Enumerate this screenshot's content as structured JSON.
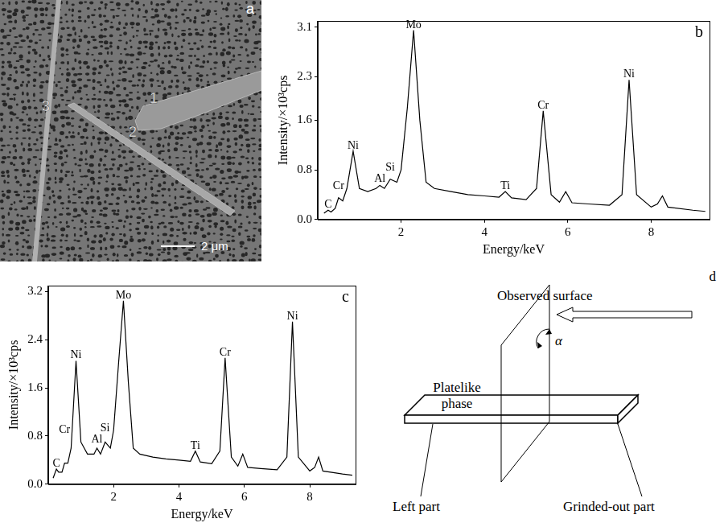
{
  "micrograph": {
    "panel_label": "a",
    "labels": [
      "1",
      "2",
      "3"
    ],
    "scale_bar": "2 μm"
  },
  "schematic": {
    "panel_label": "d",
    "observed_surface": "Observed surface",
    "angle": "α",
    "plate": "Platelike phase",
    "left": "Left part",
    "right": "Grinded-out part"
  },
  "chart_data": [
    {
      "type": "line",
      "panel_label": "b",
      "x_label": "Energy/keV",
      "y_label": "Intensity/×10³cps",
      "color": "#000000",
      "grid": false,
      "x": [
        0.15,
        0.25,
        0.32,
        0.42,
        0.5,
        0.6,
        0.7,
        0.85,
        1.0,
        1.2,
        1.4,
        1.49,
        1.6,
        1.74,
        1.9,
        2.0,
        2.15,
        2.3,
        2.45,
        2.6,
        2.8,
        3.2,
        3.6,
        4.0,
        4.35,
        4.5,
        4.65,
        5.0,
        5.25,
        5.41,
        5.6,
        5.8,
        5.95,
        6.1,
        6.5,
        7.0,
        7.3,
        7.47,
        7.65,
        8.0,
        8.15,
        8.27,
        8.4,
        9.0,
        9.3
      ],
      "values": [
        0.1,
        0.15,
        0.12,
        0.18,
        0.35,
        0.3,
        0.5,
        1.1,
        0.5,
        0.45,
        0.5,
        0.55,
        0.5,
        0.65,
        0.6,
        0.8,
        1.8,
        3.05,
        1.6,
        0.6,
        0.5,
        0.45,
        0.4,
        0.38,
        0.36,
        0.45,
        0.35,
        0.32,
        0.5,
        1.75,
        0.4,
        0.28,
        0.45,
        0.27,
        0.25,
        0.23,
        0.4,
        2.25,
        0.4,
        0.2,
        0.25,
        0.38,
        0.2,
        0.15,
        0.13
      ],
      "xlim": [
        0,
        9.4
      ],
      "xticks": [
        2,
        4,
        6,
        8
      ],
      "ylim": [
        0,
        3.2
      ],
      "yticks": [
        {
          "value": 0,
          "label": "0.0"
        },
        0.8,
        1.6,
        2.3,
        3.1
      ],
      "annotations": [
        {
          "text": "C",
          "x": 0.25,
          "y": 0.15
        },
        {
          "text": "Cr",
          "x": 0.5,
          "y": 0.35
        },
        {
          "text": "Ni",
          "x": 0.85,
          "y": 1.1
        },
        {
          "text": "Al",
          "x": 1.49,
          "y": 0.55
        },
        {
          "text": "Si",
          "x": 1.74,
          "y": 0.65
        },
        {
          "text": "Mo",
          "x": 2.3,
          "y": 3.05
        },
        {
          "text": "Ti",
          "x": 4.5,
          "y": 0.45
        },
        {
          "text": "Cr",
          "x": 5.41,
          "y": 1.75
        },
        {
          "text": "Ni",
          "x": 7.47,
          "y": 2.25
        }
      ]
    },
    {
      "type": "line",
      "panel_label": "c",
      "x_label": "Energy/keV",
      "y_label": "Intensity/×10³cps",
      "color": "#000000",
      "grid": false,
      "x": [
        0.15,
        0.25,
        0.32,
        0.42,
        0.5,
        0.6,
        0.7,
        0.85,
        1.0,
        1.2,
        1.4,
        1.49,
        1.6,
        1.74,
        1.9,
        2.0,
        2.15,
        2.3,
        2.45,
        2.6,
        2.8,
        3.2,
        3.6,
        4.0,
        4.35,
        4.5,
        4.65,
        5.0,
        5.25,
        5.41,
        5.6,
        5.8,
        5.95,
        6.1,
        6.5,
        7.0,
        7.3,
        7.47,
        7.65,
        8.0,
        8.15,
        8.27,
        8.4,
        9.0,
        9.3
      ],
      "values": [
        0.1,
        0.25,
        0.2,
        0.2,
        0.35,
        0.35,
        0.6,
        2.05,
        0.7,
        0.5,
        0.5,
        0.6,
        0.5,
        0.7,
        0.6,
        0.9,
        2.0,
        3.05,
        1.7,
        0.6,
        0.5,
        0.45,
        0.42,
        0.4,
        0.38,
        0.55,
        0.37,
        0.34,
        0.55,
        2.1,
        0.45,
        0.3,
        0.5,
        0.28,
        0.26,
        0.24,
        0.45,
        2.7,
        0.45,
        0.22,
        0.28,
        0.45,
        0.22,
        0.17,
        0.15
      ],
      "xlim": [
        0,
        9.4
      ],
      "xticks": [
        2,
        4,
        6,
        8
      ],
      "ylim": [
        0,
        3.3
      ],
      "yticks": [
        {
          "value": 0,
          "label": "0.0"
        },
        0.8,
        1.6,
        2.4,
        3.2
      ],
      "annotations": [
        {
          "text": "C",
          "x": 0.25,
          "y": 0.25
        },
        {
          "text": "Cr",
          "x": 0.5,
          "y": 0.35
        },
        {
          "text": "Ni",
          "x": 0.85,
          "y": 2.05
        },
        {
          "text": "Al",
          "x": 1.49,
          "y": 0.6
        },
        {
          "text": "Si",
          "x": 1.74,
          "y": 0.7
        },
        {
          "text": "Mo",
          "x": 2.3,
          "y": 3.05
        },
        {
          "text": "Ti",
          "x": 4.5,
          "y": 0.55
        },
        {
          "text": "Cr",
          "x": 5.41,
          "y": 2.1
        },
        {
          "text": "Ni",
          "x": 7.47,
          "y": 2.7
        }
      ]
    }
  ]
}
